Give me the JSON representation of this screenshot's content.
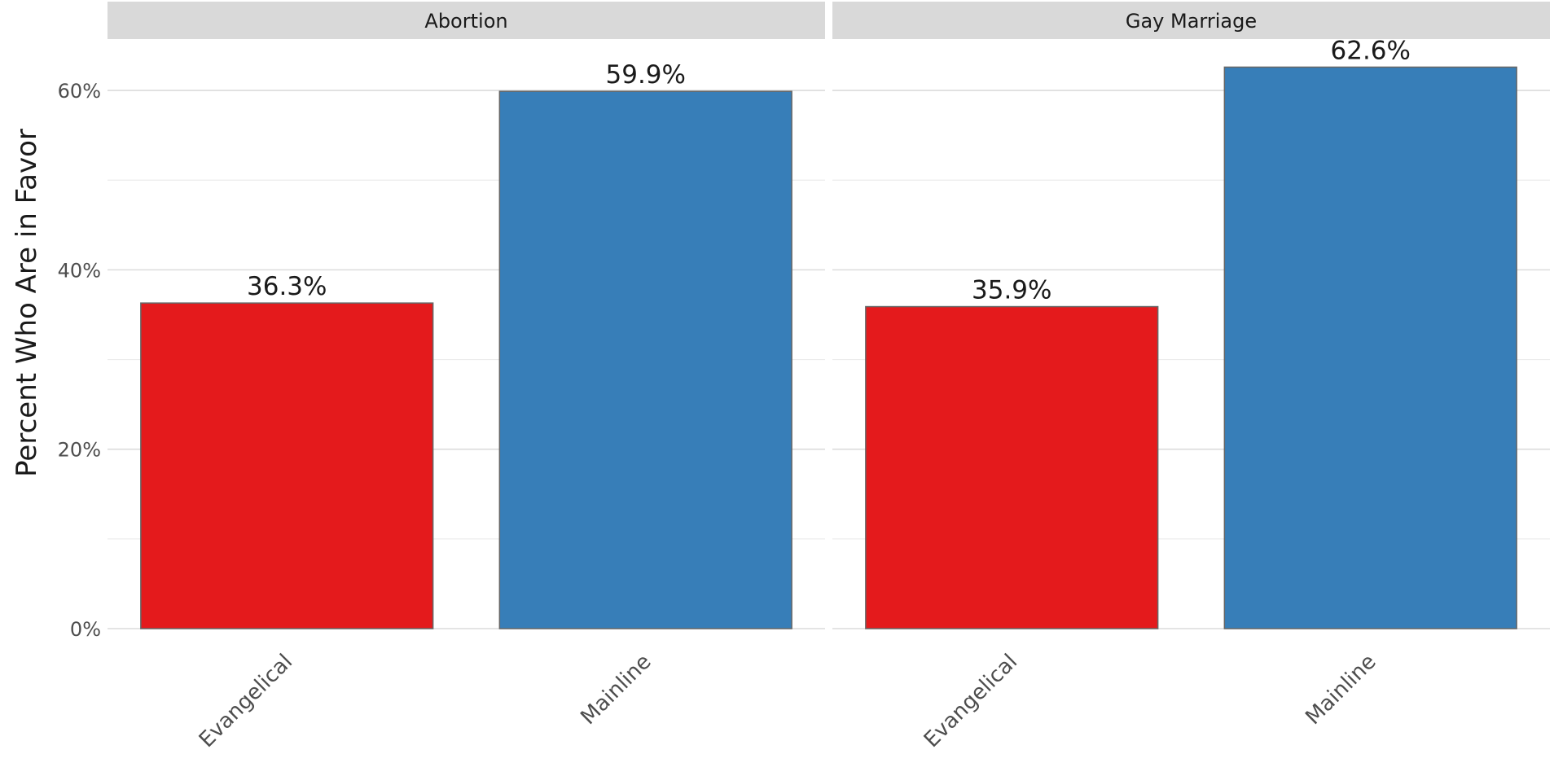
{
  "chart_data": {
    "type": "bar",
    "facets": [
      "Abortion",
      "Gay Marriage"
    ],
    "categories": [
      "Evangelical",
      "Mainline"
    ],
    "series": [
      {
        "facet": "Abortion",
        "values": [
          36.3,
          59.9
        ],
        "labels": [
          "36.3%",
          "59.9%"
        ]
      },
      {
        "facet": "Gay Marriage",
        "values": [
          35.9,
          62.6
        ],
        "labels": [
          "35.9%",
          "62.6%"
        ]
      }
    ],
    "colors": {
      "Evangelical": "#e41a1c",
      "Mainline": "#377eb8"
    },
    "ylabel": "Percent Who Are in Favor",
    "ylim": [
      0,
      65
    ],
    "yticks": [
      0,
      20,
      40,
      60
    ],
    "ytick_labels": [
      "0%",
      "20%",
      "40%",
      "60%"
    ],
    "grid": true,
    "legend": "none"
  }
}
